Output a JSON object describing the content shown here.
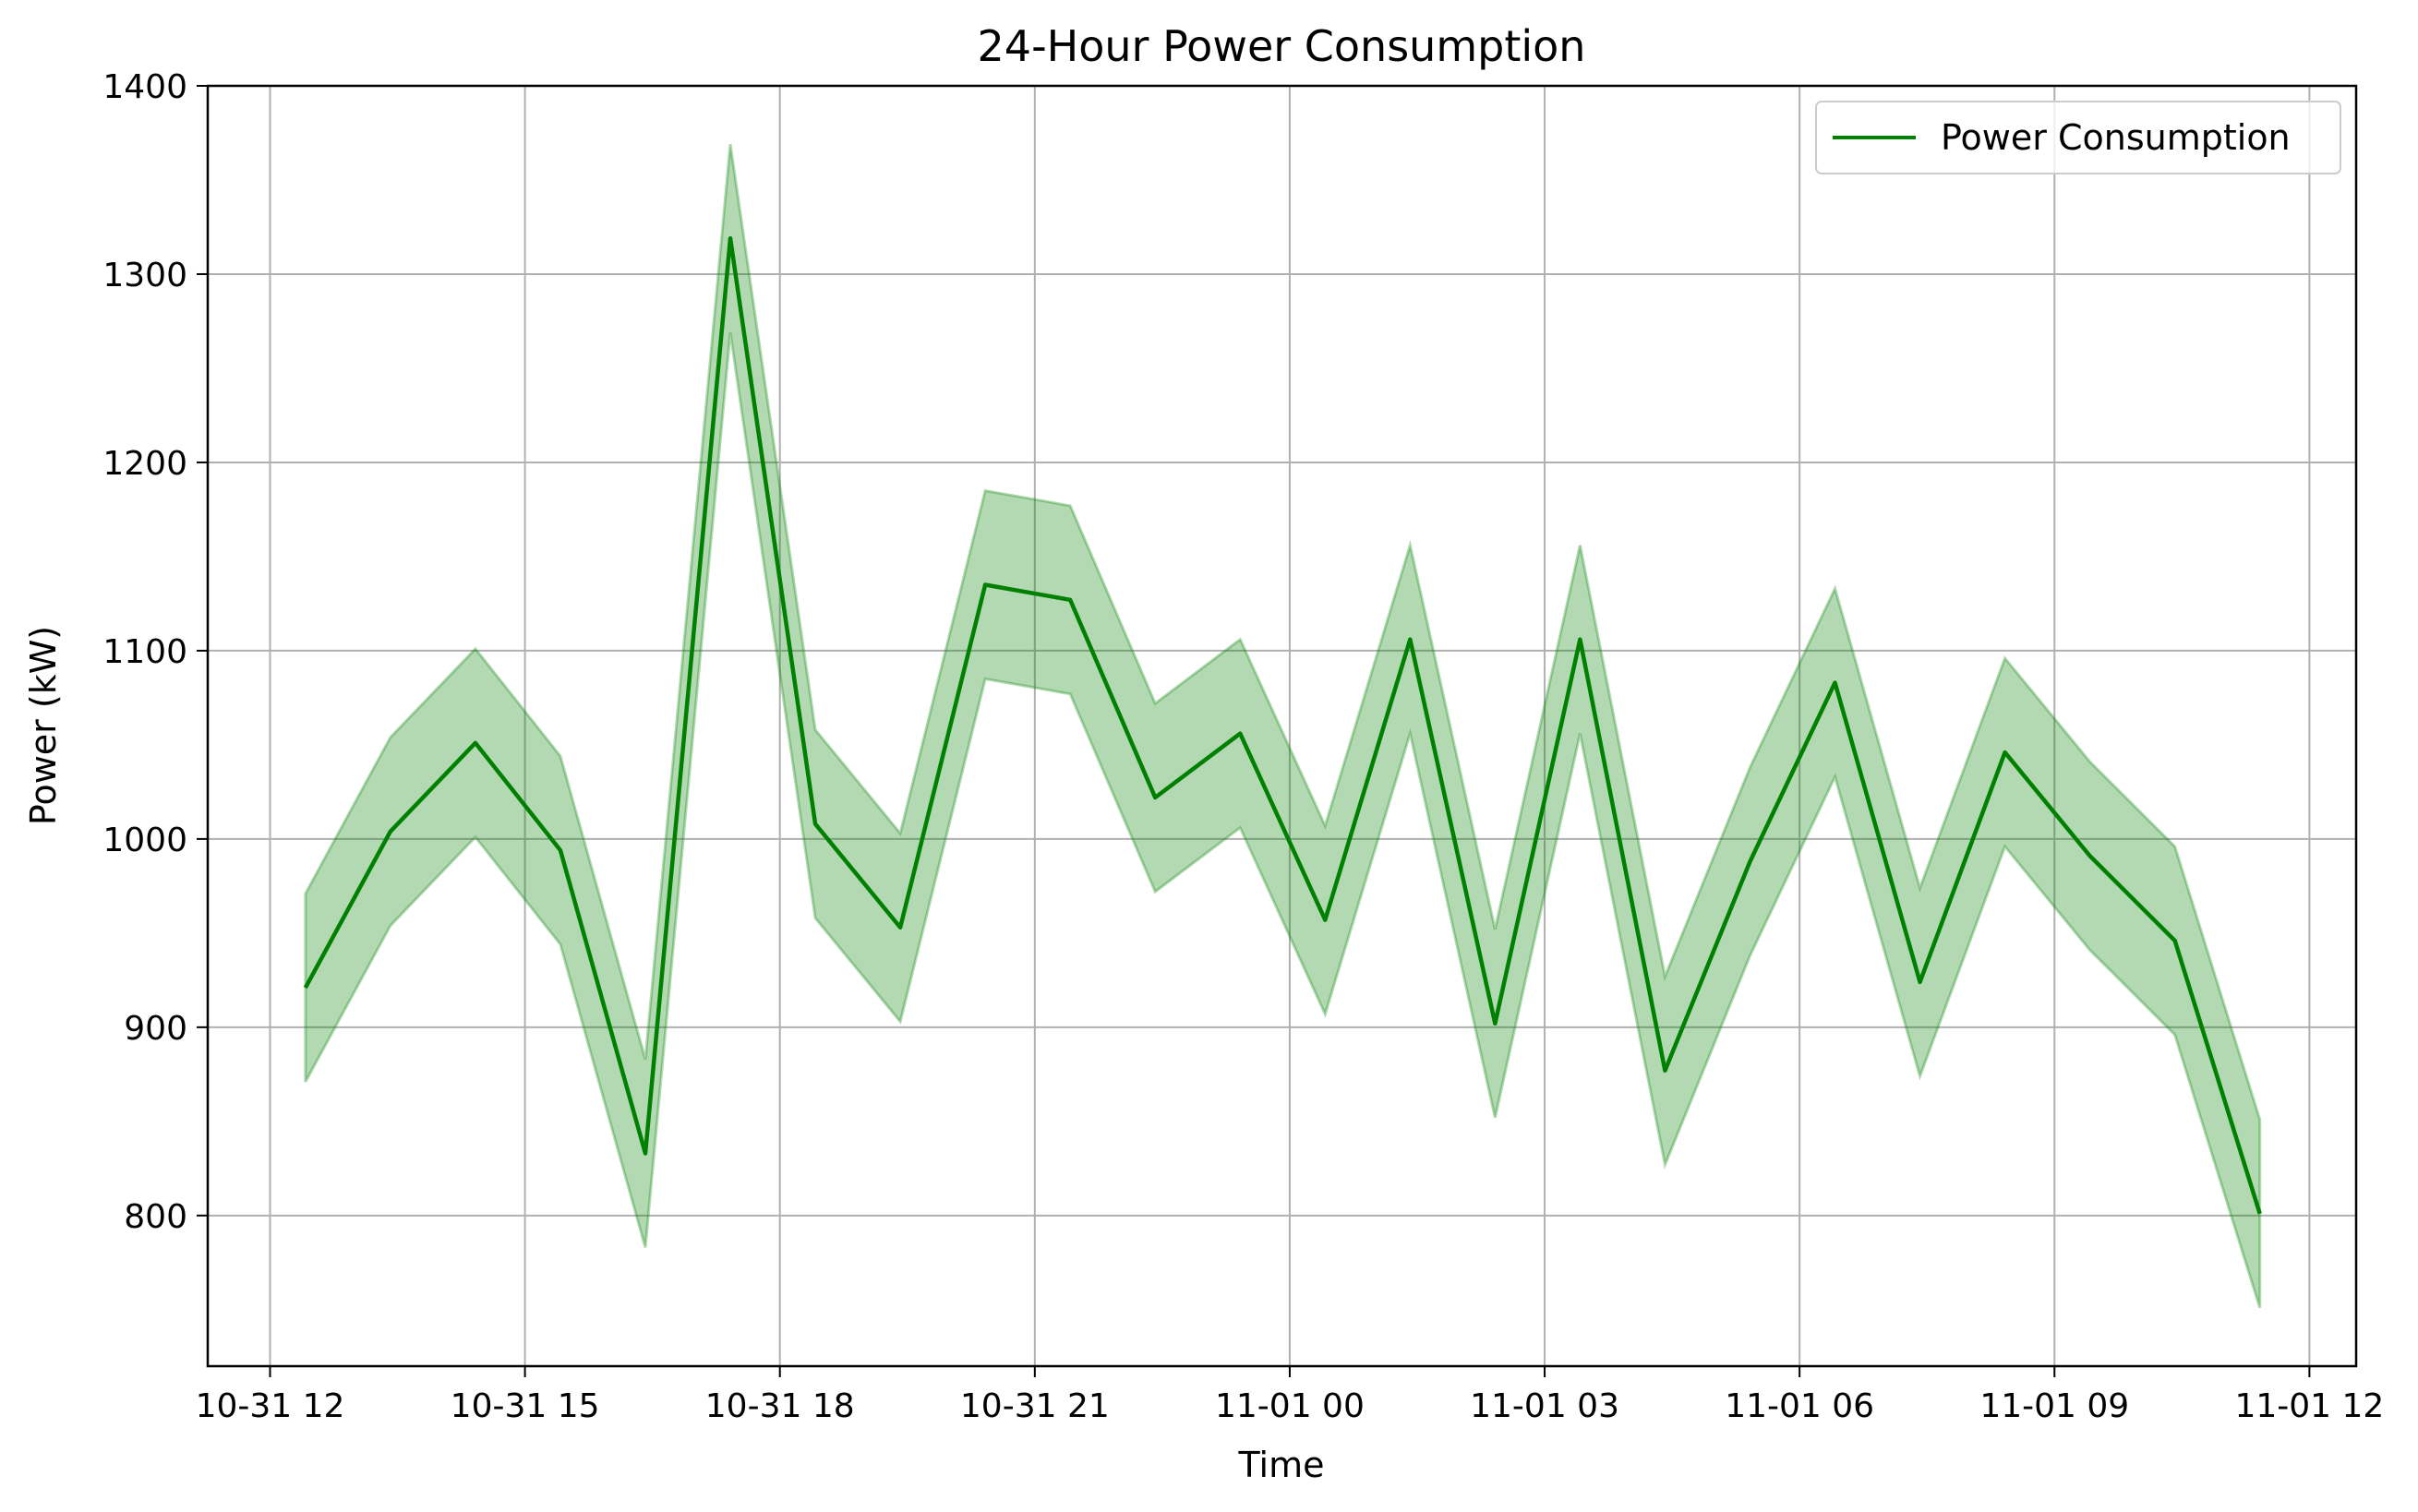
{
  "chart_data": {
    "type": "line",
    "title": "24-Hour Power Consumption",
    "xlabel": "Time",
    "ylabel": "Power (kW)",
    "x_ticks": [
      "10-31 12",
      "10-31 15",
      "10-31 18",
      "10-31 21",
      "11-01 00",
      "11-01 03",
      "11-01 06",
      "11-01 09",
      "11-01 12"
    ],
    "y_ticks": [
      800,
      900,
      1000,
      1100,
      1200,
      1300,
      1400
    ],
    "xlim": [
      "2023-10-31 11:16",
      "2023-11-01 12:33"
    ],
    "ylim": [
      720,
      1400
    ],
    "grid": true,
    "legend_position": "top-right",
    "colors": {
      "line": "#008000",
      "band": "#008000"
    },
    "x": [
      "2023-10-31 12:25",
      "2023-10-31 13:25",
      "2023-10-31 14:25",
      "2023-10-31 15:25",
      "2023-10-31 16:25",
      "2023-10-31 17:25",
      "2023-10-31 18:25",
      "2023-10-31 19:25",
      "2023-10-31 20:25",
      "2023-10-31 21:25",
      "2023-10-31 22:25",
      "2023-10-31 23:25",
      "2023-11-01 00:25",
      "2023-11-01 01:25",
      "2023-11-01 02:25",
      "2023-11-01 03:25",
      "2023-11-01 04:25",
      "2023-11-01 05:25",
      "2023-11-01 06:25",
      "2023-11-01 07:25",
      "2023-11-01 08:25",
      "2023-11-01 09:25",
      "2023-11-01 10:25",
      "2023-11-01 11:25"
    ],
    "series": [
      {
        "name": "Power Consumption",
        "values": [
          921,
          1004,
          1051,
          994,
          833,
          1319,
          1008,
          953,
          1135,
          1127,
          1022,
          1056,
          957,
          1106,
          902,
          1106,
          877,
          988,
          1083,
          924,
          1046,
          991,
          946,
          801
        ],
        "band_lower": [
          871,
          954,
          1001,
          944,
          783,
          1269,
          958,
          903,
          1085,
          1077,
          972,
          1006,
          907,
          1056,
          852,
          1056,
          827,
          938,
          1033,
          874,
          996,
          941,
          896,
          751
        ],
        "band_upper": [
          971,
          1054,
          1101,
          1044,
          883,
          1369,
          1058,
          1003,
          1185,
          1177,
          1072,
          1106,
          1007,
          1156,
          952,
          1156,
          927,
          1038,
          1133,
          974,
          1096,
          1041,
          996,
          851
        ]
      }
    ]
  }
}
